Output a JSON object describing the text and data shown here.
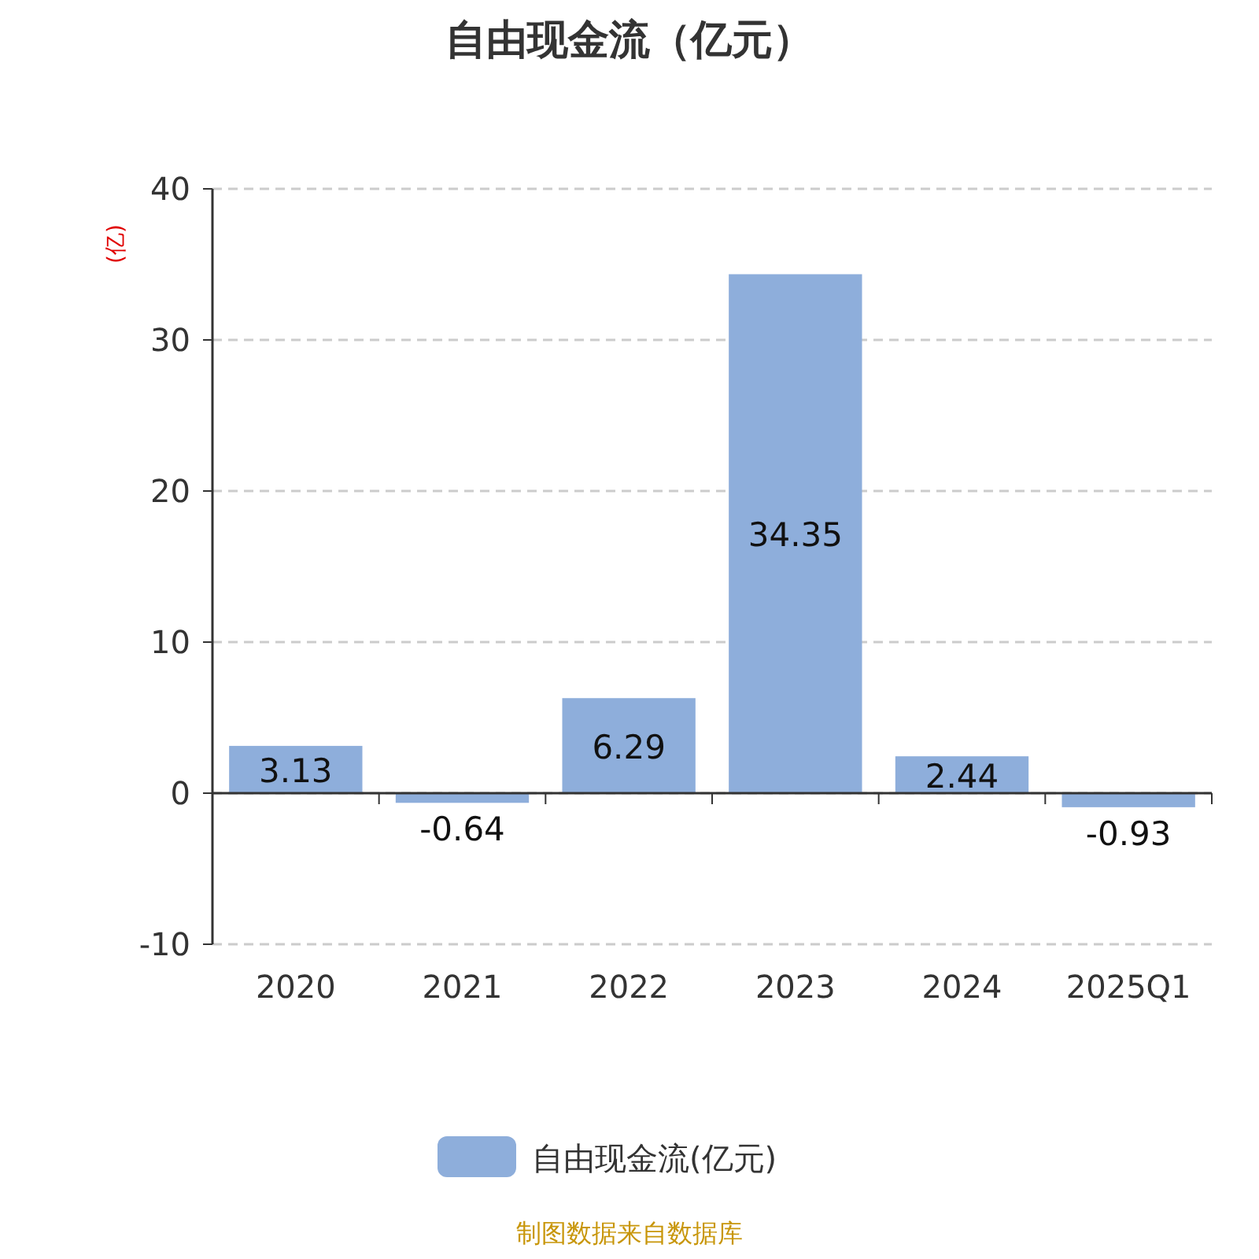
{
  "chart_data": {
    "type": "bar",
    "title": "自由现金流（亿元）",
    "ylabel": "(亿)",
    "categories": [
      "2020",
      "2021",
      "2022",
      "2023",
      "2024",
      "2025Q1"
    ],
    "series": [
      {
        "name": "自由现金流(亿元)",
        "color": "#8eaedb",
        "values": [
          3.13,
          -0.64,
          6.29,
          34.35,
          2.44,
          -0.93
        ]
      }
    ],
    "ylim": [
      -10,
      40
    ],
    "yticks": [
      -10,
      0,
      10,
      20,
      30,
      40
    ],
    "grid": "y",
    "legend": "bottom",
    "data_labels": true,
    "annotations": [
      "制图数据来自数据库"
    ]
  }
}
